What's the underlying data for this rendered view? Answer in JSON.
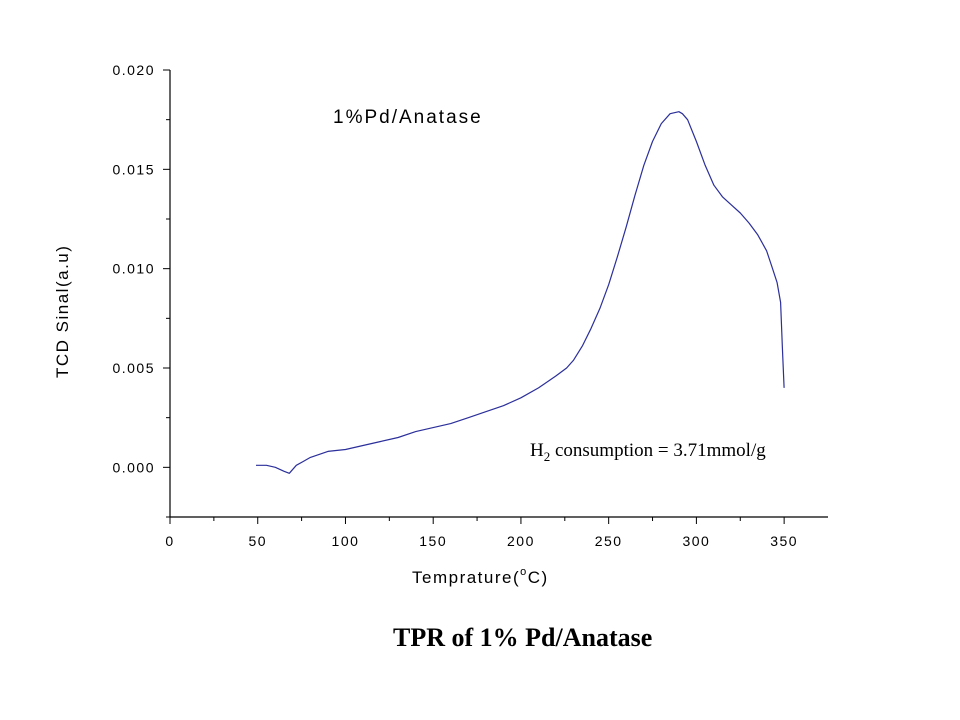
{
  "chart_data": {
    "type": "line",
    "caption": "TPR of  1% Pd/Anatase",
    "series_label": "1%Pd/Anatase",
    "xlabel": {
      "text": "Temprature(",
      "super": "o",
      "unit": "C)"
    },
    "ylabel": "TCD Sinal(a.u)",
    "annotation": {
      "prefix": "H",
      "sub": "2",
      "text": " consumption = 3.71mmol/g"
    },
    "xlim": [
      0,
      375
    ],
    "ylim": [
      -0.0025,
      0.02
    ],
    "xticks": [
      "0",
      "50",
      "100",
      "150",
      "200",
      "250",
      "300",
      "350"
    ],
    "xtick_values": [
      0,
      50,
      100,
      150,
      200,
      250,
      300,
      350
    ],
    "yticks": [
      "0.000",
      "0.005",
      "0.010",
      "0.015",
      "0.020"
    ],
    "ytick_values": [
      0,
      0.005,
      0.01,
      0.015,
      0.02
    ],
    "line_color": "#2b2f9a",
    "series": [
      {
        "x": [
          49,
          55,
          60,
          65,
          68,
          72,
          76,
          80,
          90,
          100,
          110,
          120,
          130,
          140,
          150,
          160,
          170,
          180,
          190,
          200,
          210,
          220,
          226,
          230,
          235,
          240,
          245,
          250,
          255,
          260,
          265,
          270,
          275,
          280,
          285,
          290,
          292,
          295,
          300,
          305,
          310,
          315,
          320,
          325,
          330,
          335,
          340,
          343,
          346,
          348,
          349,
          350
        ],
        "y": [
          0.0001,
          0.0001,
          0.0,
          -0.0002,
          -0.0003,
          0.0001,
          0.0003,
          0.0005,
          0.0008,
          0.0009,
          0.0011,
          0.0013,
          0.0015,
          0.0018,
          0.002,
          0.0022,
          0.0025,
          0.0028,
          0.0031,
          0.0035,
          0.004,
          0.0046,
          0.005,
          0.0054,
          0.0061,
          0.007,
          0.008,
          0.0092,
          0.0106,
          0.0121,
          0.0137,
          0.0152,
          0.0164,
          0.0173,
          0.0178,
          0.0179,
          0.0178,
          0.0175,
          0.0164,
          0.0152,
          0.0142,
          0.0136,
          0.0132,
          0.0128,
          0.0123,
          0.0117,
          0.0109,
          0.0101,
          0.0093,
          0.0083,
          0.006,
          0.004
        ]
      }
    ]
  }
}
